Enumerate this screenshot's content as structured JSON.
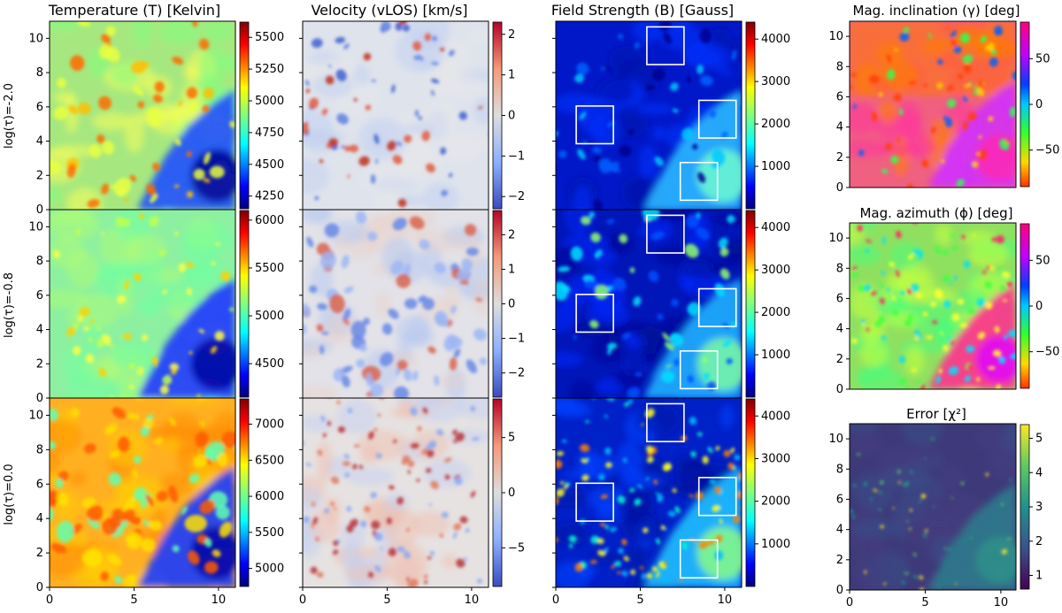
{
  "figure": {
    "column_titles": [
      "Temperature (T) [Kelvin]",
      "Velocity (vLOS) [km/s]",
      "Field Strength (B) [Gauss]"
    ],
    "row_labels": [
      "log(τ)=-2.0",
      "log(τ)=-0.8",
      "log(τ)=0.0"
    ],
    "side_titles": [
      "Mag. inclination (γ) [deg]",
      "Mag. azimuth (ϕ) [deg]",
      "Error [χ²]"
    ]
  },
  "chart_data": [
    {
      "type": "heatmap",
      "id": "T_m2",
      "title": "Temperature (T) [Kelvin]",
      "ylabel": "log(τ)=-2.0",
      "xlim": [
        0,
        11
      ],
      "ylim": [
        0,
        11
      ],
      "xticks": [],
      "yticks": [
        0,
        2,
        4,
        6,
        8,
        10
      ],
      "colorscale": "jet",
      "clim": [
        4150,
        5620
      ],
      "cbar_ticks": [
        4250,
        4500,
        4750,
        5000,
        5250,
        5500
      ]
    },
    {
      "type": "heatmap",
      "id": "V_m2",
      "title": "Velocity (vLOS) [km/s]",
      "xlim": [
        0,
        11
      ],
      "ylim": [
        0,
        11
      ],
      "xticks": [],
      "yticks": [],
      "colorscale": "coolwarm",
      "clim": [
        -2.3,
        2.3
      ],
      "cbar_ticks": [
        -2,
        -1,
        0,
        1,
        2
      ]
    },
    {
      "type": "heatmap",
      "id": "B_m2",
      "title": "Field Strength (B) [Gauss]",
      "xlim": [
        0,
        11
      ],
      "ylim": [
        0,
        11
      ],
      "xticks": [],
      "yticks": [],
      "colorscale": "jet",
      "clim": [
        0,
        4400
      ],
      "cbar_ticks": [
        1000,
        2000,
        3000,
        4000
      ],
      "boxes": 4
    },
    {
      "type": "heatmap",
      "id": "T_m08",
      "ylabel": "log(τ)=-0.8",
      "xlim": [
        0,
        11
      ],
      "ylim": [
        0,
        11
      ],
      "xticks": [],
      "yticks": [
        0,
        2,
        4,
        6,
        8,
        10
      ],
      "colorscale": "jet",
      "clim": [
        4150,
        6100
      ],
      "cbar_ticks": [
        4500,
        5000,
        5500,
        6000
      ]
    },
    {
      "type": "heatmap",
      "id": "V_m08",
      "xlim": [
        0,
        11
      ],
      "ylim": [
        0,
        11
      ],
      "xticks": [],
      "yticks": [],
      "colorscale": "coolwarm",
      "clim": [
        -2.7,
        2.7
      ],
      "cbar_ticks": [
        -2,
        -1,
        0,
        1,
        2
      ]
    },
    {
      "type": "heatmap",
      "id": "B_m08",
      "xlim": [
        0,
        11
      ],
      "ylim": [
        0,
        11
      ],
      "xticks": [],
      "yticks": [],
      "colorscale": "jet",
      "clim": [
        0,
        4400
      ],
      "cbar_ticks": [
        1000,
        2000,
        3000,
        4000
      ],
      "boxes": 4
    },
    {
      "type": "heatmap",
      "id": "T_0",
      "ylabel": "log(τ)=0.0",
      "xlim": [
        0,
        11
      ],
      "ylim": [
        0,
        11
      ],
      "xticks": [
        0,
        5,
        10
      ],
      "yticks": [
        0,
        2,
        4,
        6,
        8,
        10
      ],
      "colorscale": "jet",
      "clim": [
        4750,
        7350
      ],
      "cbar_ticks": [
        5000,
        5500,
        6000,
        6500,
        7000
      ]
    },
    {
      "type": "heatmap",
      "id": "V_0",
      "xlim": [
        0,
        11
      ],
      "ylim": [
        0,
        11
      ],
      "xticks": [
        0,
        5,
        10
      ],
      "yticks": [],
      "colorscale": "coolwarm",
      "clim": [
        -8.5,
        8.5
      ],
      "cbar_ticks": [
        -5,
        0,
        5
      ]
    },
    {
      "type": "heatmap",
      "id": "B_0",
      "xlim": [
        0,
        11
      ],
      "ylim": [
        0,
        11
      ],
      "xticks": [
        0,
        5,
        10
      ],
      "yticks": [],
      "colorscale": "jet",
      "clim": [
        0,
        4400
      ],
      "cbar_ticks": [
        1000,
        2000,
        3000,
        4000
      ],
      "boxes": 4
    },
    {
      "type": "heatmap",
      "id": "gamma",
      "title": "Mag. inclination (γ) [deg]",
      "xlim": [
        0,
        11
      ],
      "ylim": [
        0,
        11
      ],
      "xticks": [],
      "yticks": [
        0,
        2,
        4,
        6,
        8,
        10
      ],
      "colorscale": "cyclic",
      "clim": [
        -90,
        90
      ],
      "cbar_ticks": [
        -50,
        0,
        50
      ]
    },
    {
      "type": "heatmap",
      "id": "phi",
      "title": "Mag. azimuth (ϕ) [deg]",
      "xlim": [
        0,
        11
      ],
      "ylim": [
        0,
        11
      ],
      "xticks": [],
      "yticks": [
        0,
        2,
        4,
        6,
        8,
        10
      ],
      "colorscale": "cyclic",
      "clim": [
        -90,
        90
      ],
      "cbar_ticks": [
        -50,
        0,
        50
      ]
    },
    {
      "type": "heatmap",
      "id": "chi2",
      "title": "Error [χ²]",
      "xlim": [
        0,
        11
      ],
      "ylim": [
        0,
        11
      ],
      "xticks": [
        0,
        5,
        10
      ],
      "yticks": [
        0,
        2,
        4,
        6,
        8,
        10
      ],
      "colorscale": "viridis",
      "clim": [
        0.6,
        5.4
      ],
      "cbar_ticks": [
        1,
        2,
        3,
        4,
        5
      ]
    }
  ]
}
